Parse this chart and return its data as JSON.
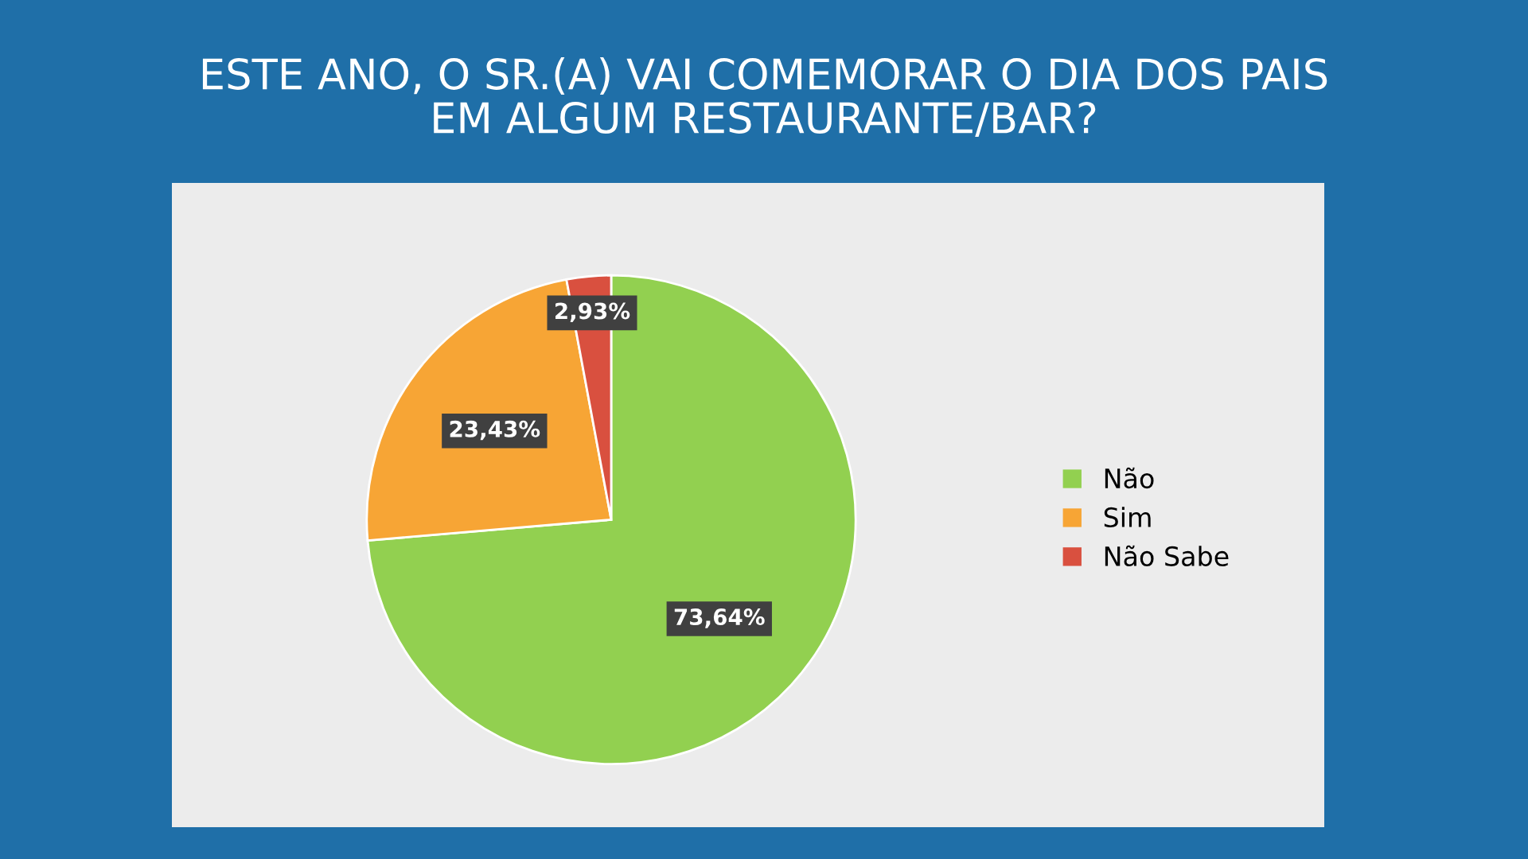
{
  "chart_data": {
    "type": "pie",
    "title": "ESTE ANO, O SR.(A) VAI COMEMORAR O DIA DOS PAIS\nEM ALGUM RESTAURANTE/BAR?",
    "categories": [
      "Não",
      "Sim",
      "Não Sabe"
    ],
    "values": [
      73.64,
      23.43,
      2.93
    ],
    "colors": [
      "#92d050",
      "#f7a535",
      "#d9503f"
    ],
    "value_labels": [
      "73,64%",
      "23,43%",
      "2,93%"
    ],
    "legend": "right"
  }
}
